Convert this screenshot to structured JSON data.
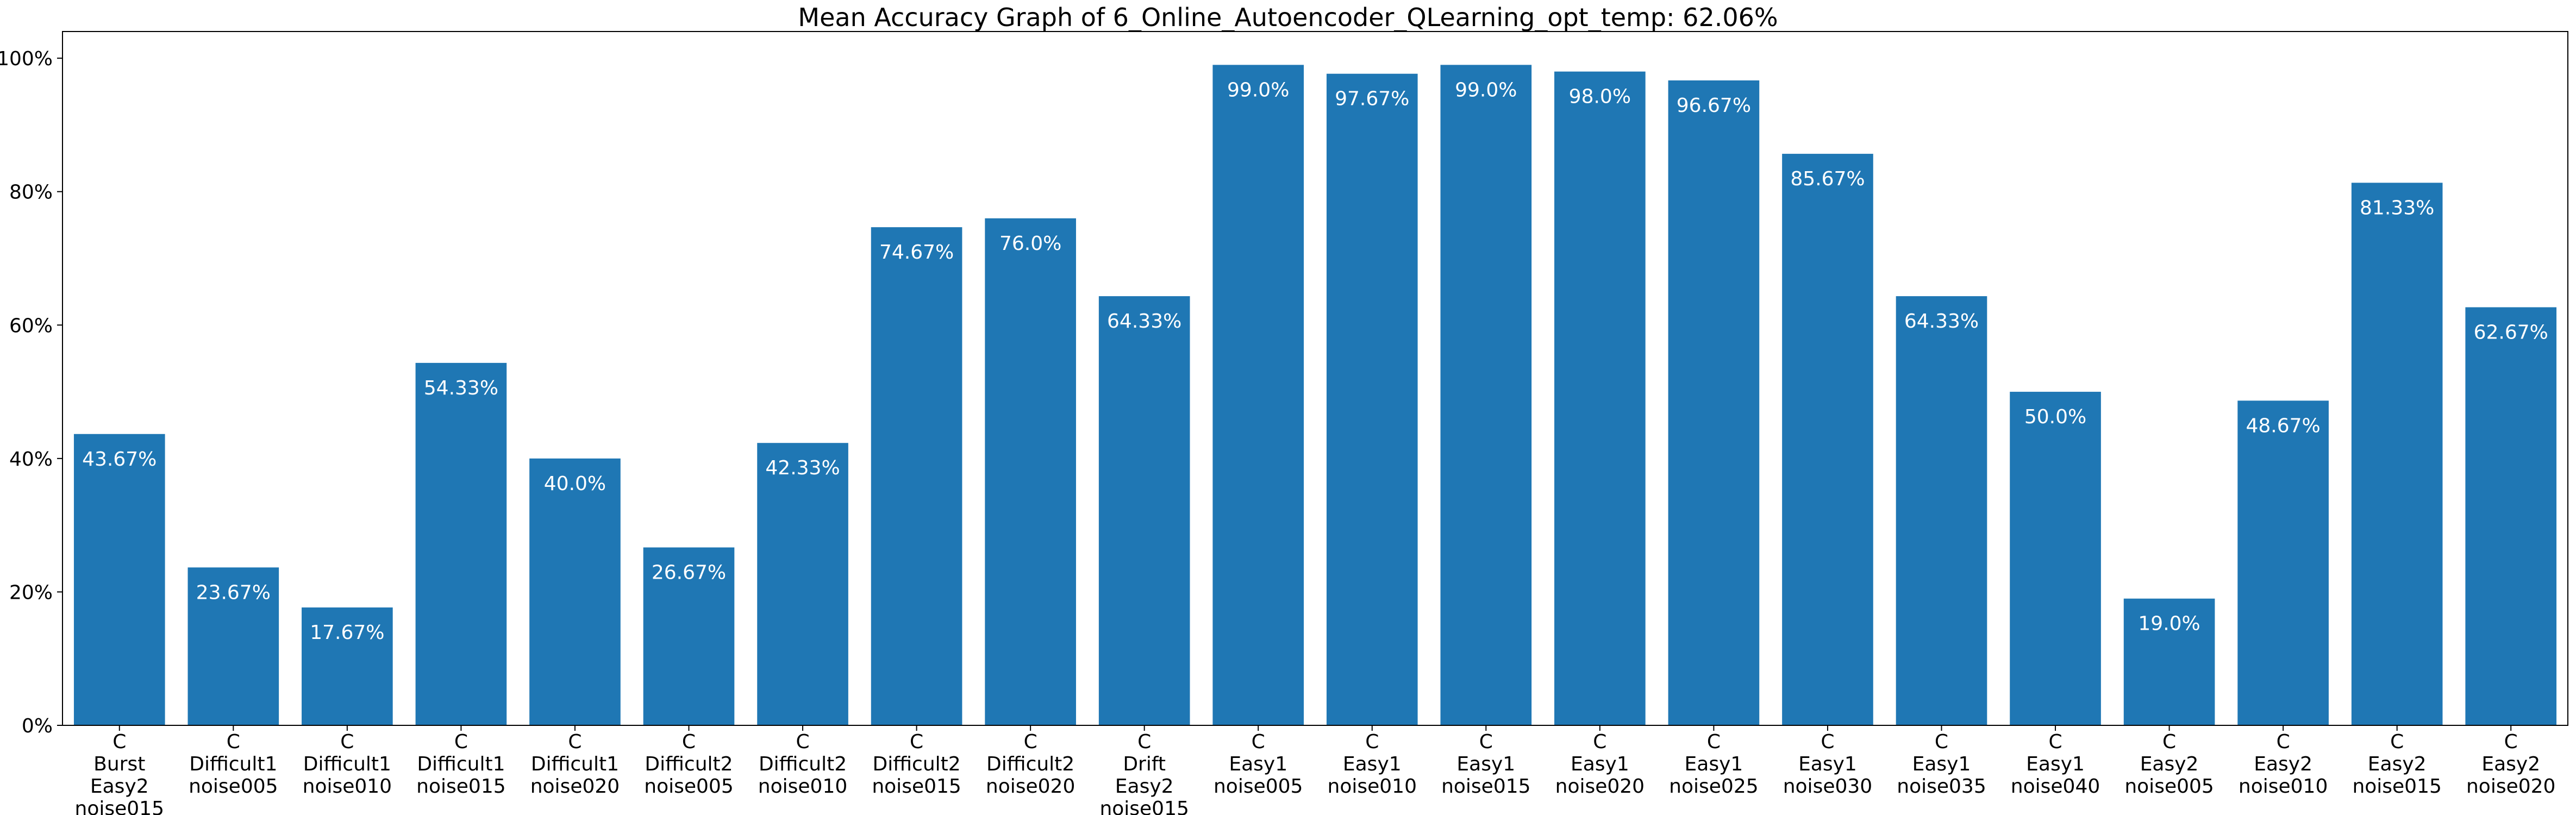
{
  "chart_data": {
    "type": "bar",
    "title": "Mean Accuracy Graph of 6_Online_Autoencoder_QLearning_opt_temp: 62.06%",
    "xlabel": "",
    "ylabel": "",
    "ylim": [
      0,
      104
    ],
    "y_ticks": [
      0,
      20,
      40,
      60,
      80,
      100
    ],
    "y_tick_labels": [
      "0%",
      "20%",
      "40%",
      "60%",
      "80%",
      "100%"
    ],
    "grid": false,
    "bar_color": "#1f77b4",
    "categories": [
      [
        "C",
        "Burst",
        "Easy2",
        "noise015"
      ],
      [
        "C",
        "Difficult1",
        "noise005"
      ],
      [
        "C",
        "Difficult1",
        "noise010"
      ],
      [
        "C",
        "Difficult1",
        "noise015"
      ],
      [
        "C",
        "Difficult1",
        "noise020"
      ],
      [
        "C",
        "Difficult2",
        "noise005"
      ],
      [
        "C",
        "Difficult2",
        "noise010"
      ],
      [
        "C",
        "Difficult2",
        "noise015"
      ],
      [
        "C",
        "Difficult2",
        "noise020"
      ],
      [
        "C",
        "Drift",
        "Easy2",
        "noise015"
      ],
      [
        "C",
        "Easy1",
        "noise005"
      ],
      [
        "C",
        "Easy1",
        "noise010"
      ],
      [
        "C",
        "Easy1",
        "noise015"
      ],
      [
        "C",
        "Easy1",
        "noise020"
      ],
      [
        "C",
        "Easy1",
        "noise025"
      ],
      [
        "C",
        "Easy1",
        "noise030"
      ],
      [
        "C",
        "Easy1",
        "noise035"
      ],
      [
        "C",
        "Easy1",
        "noise040"
      ],
      [
        "C",
        "Easy2",
        "noise005"
      ],
      [
        "C",
        "Easy2",
        "noise010"
      ],
      [
        "C",
        "Easy2",
        "noise015"
      ],
      [
        "C",
        "Easy2",
        "noise020"
      ]
    ],
    "values": [
      43.67,
      23.67,
      17.67,
      54.33,
      40.0,
      26.67,
      42.33,
      74.67,
      76.0,
      64.33,
      99.0,
      97.67,
      99.0,
      98.0,
      96.67,
      85.67,
      64.33,
      50.0,
      19.0,
      48.67,
      81.33,
      62.67
    ],
    "value_labels": [
      "43.67%",
      "23.67%",
      "17.67%",
      "54.33%",
      "40.0%",
      "26.67%",
      "42.33%",
      "74.67%",
      "76.0%",
      "64.33%",
      "99.0%",
      "97.67%",
      "99.0%",
      "98.0%",
      "96.67%",
      "85.67%",
      "64.33%",
      "50.0%",
      "19.0%",
      "48.67%",
      "81.33%",
      "62.67%"
    ]
  }
}
